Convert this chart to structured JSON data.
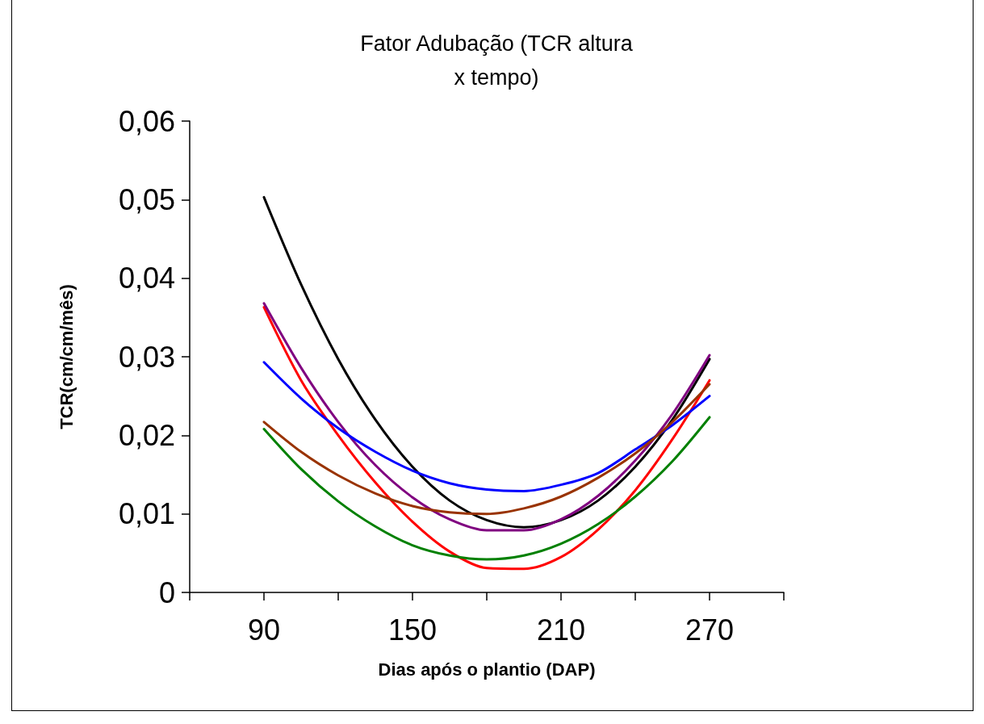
{
  "chart_data": {
    "type": "line",
    "title": "Fator Adubação (TCR altura\nx tempo)",
    "xlabel": "Dias após o plantio (DAP)",
    "ylabel": "TCR(cm/cm/mês)",
    "x": [
      90,
      105,
      120,
      135,
      150,
      165,
      180,
      195,
      210,
      225,
      240,
      255,
      270
    ],
    "series": [
      {
        "color": "#000000",
        "values": [
          0.0503,
          0.0392,
          0.0297,
          0.022,
          0.016,
          0.0117,
          0.0092,
          0.0083,
          0.0092,
          0.0117,
          0.016,
          0.022,
          0.0297
        ]
      },
      {
        "color": "#ff0000",
        "values": [
          0.0363,
          0.027,
          0.02,
          0.014,
          0.009,
          0.0052,
          0.0031,
          0.003,
          0.0045,
          0.008,
          0.013,
          0.0195,
          0.027
        ]
      },
      {
        "color": "#800080",
        "values": [
          0.0368,
          0.0286,
          0.0217,
          0.0162,
          0.0121,
          0.0093,
          0.0079,
          0.0079,
          0.0093,
          0.0123,
          0.0168,
          0.0227,
          0.0302
        ]
      },
      {
        "color": "#0000ff",
        "values": [
          0.0293,
          0.0247,
          0.0209,
          0.0179,
          0.0155,
          0.0139,
          0.0131,
          0.0129,
          0.0137,
          0.0152,
          0.0182,
          0.0213,
          0.025
        ]
      },
      {
        "color": "#993300",
        "values": [
          0.0217,
          0.0179,
          0.0149,
          0.0126,
          0.011,
          0.0102,
          0.01,
          0.0107,
          0.0122,
          0.0146,
          0.0177,
          0.0217,
          0.0265
        ]
      },
      {
        "color": "#008000",
        "values": [
          0.0208,
          0.0157,
          0.0116,
          0.0084,
          0.006,
          0.0047,
          0.0042,
          0.0047,
          0.0062,
          0.0087,
          0.0122,
          0.0167,
          0.0223
        ]
      }
    ],
    "xlim": [
      60,
      300
    ],
    "xticks": [
      {
        "value": 60,
        "label": null
      },
      90,
      {
        "value": 120,
        "label": null
      },
      150,
      {
        "value": 180,
        "label": null
      },
      210,
      {
        "value": 240,
        "label": null
      },
      270,
      {
        "value": 300,
        "label": null
      }
    ],
    "ylim": [
      0,
      0.06
    ],
    "yticks": [
      0,
      {
        "value": 0.01,
        "label": "0,01"
      },
      {
        "value": 0.02,
        "label": "0,02"
      },
      {
        "value": 0.03,
        "label": "0,03"
      },
      {
        "value": 0.04,
        "label": "0,04"
      },
      {
        "value": 0.05,
        "label": "0,05"
      },
      {
        "value": 0.06,
        "label": "0,06"
      }
    ],
    "grid": false,
    "marker": "none",
    "line_style": "solid"
  }
}
